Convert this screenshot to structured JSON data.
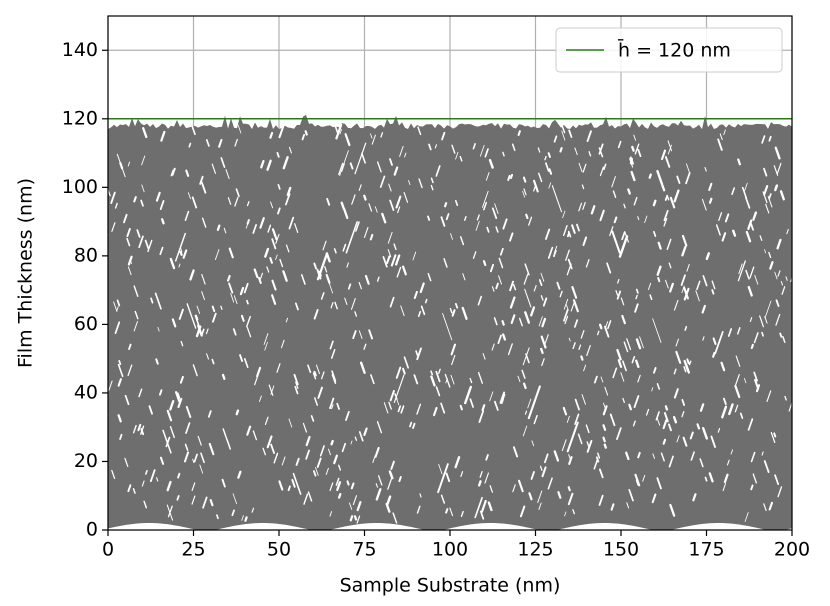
{
  "chart_data": {
    "type": "line",
    "xlabel": "Sample Substrate (nm)",
    "ylabel": "Film Thickness (nm)",
    "xlim": [
      0,
      200
    ],
    "ylim": [
      0,
      150
    ],
    "xticks": [
      0,
      25,
      50,
      75,
      100,
      125,
      150,
      175,
      200
    ],
    "yticks": [
      0,
      20,
      40,
      60,
      80,
      100,
      120,
      140
    ],
    "grid": true,
    "legend": "upper right",
    "series": [
      {
        "name": "h̄ = 120 nm",
        "color": "#2a7a1a",
        "x": [
          0,
          200
        ],
        "values": [
          120,
          120
        ]
      }
    ]
  }
}
